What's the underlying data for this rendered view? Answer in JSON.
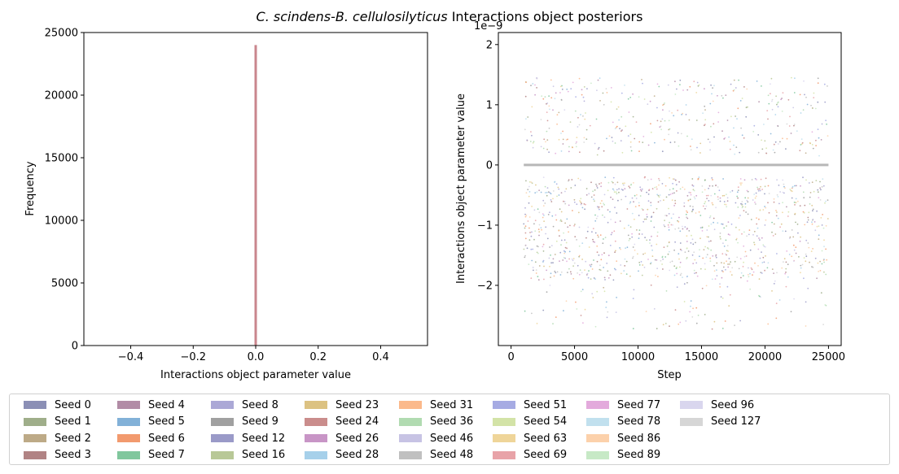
{
  "figure_title": {
    "italic": "C. scindens-B. cellulosilyticus",
    "rest": " Interactions object posteriors"
  },
  "chart_data": [
    {
      "type": "bar",
      "title": "",
      "xlabel": "Interactions object parameter value",
      "ylabel": "Frequency",
      "xlim": [
        -0.55,
        0.55
      ],
      "ylim": [
        0,
        25000
      ],
      "xticks": [
        "-0.4",
        "-0.2",
        "0.0",
        "0.2",
        "0.4"
      ],
      "yticks": [
        "0",
        "5000",
        "10000",
        "15000",
        "20000",
        "25000"
      ],
      "bars": [
        {
          "x": 0.0,
          "height": 24000,
          "color": "#c9868d"
        }
      ]
    },
    {
      "type": "scatter",
      "title": "",
      "xlabel": "Step",
      "ylabel": "Interactions object parameter value",
      "y_scale_label": "1e−9",
      "xlim": [
        -1000,
        26000
      ],
      "ylim": [
        -3.0,
        2.2
      ],
      "xticks": [
        "0",
        "5000",
        "10000",
        "15000",
        "20000",
        "25000"
      ],
      "yticks": [
        "−2",
        "−1",
        "0",
        "1",
        "2"
      ],
      "zero_line": {
        "x": [
          1000,
          25000
        ],
        "y": 0,
        "color": "#b8b8b8"
      },
      "point_count_estimate": 1500,
      "value_range": [
        -2.75,
        1.95
      ]
    }
  ],
  "legend": {
    "items": [
      {
        "label": "Seed 0",
        "color": "#8b8fb5"
      },
      {
        "label": "Seed 1",
        "color": "#9fae8a"
      },
      {
        "label": "Seed 2",
        "color": "#bdaa87"
      },
      {
        "label": "Seed 3",
        "color": "#b18384"
      },
      {
        "label": "Seed 4",
        "color": "#b28ca6"
      },
      {
        "label": "Seed 5",
        "color": "#82b1d8"
      },
      {
        "label": "Seed 6",
        "color": "#f29a6e"
      },
      {
        "label": "Seed 7",
        "color": "#80c79d"
      },
      {
        "label": "Seed 8",
        "color": "#aba8d6"
      },
      {
        "label": "Seed 9",
        "color": "#a0a0a0"
      },
      {
        "label": "Seed 12",
        "color": "#9a9ac8"
      },
      {
        "label": "Seed 16",
        "color": "#b8c897"
      },
      {
        "label": "Seed 23",
        "color": "#dcc282"
      },
      {
        "label": "Seed 24",
        "color": "#ca8d8c"
      },
      {
        "label": "Seed 26",
        "color": "#c895c6"
      },
      {
        "label": "Seed 28",
        "color": "#a6d0ea"
      },
      {
        "label": "Seed 31",
        "color": "#fbb98b"
      },
      {
        "label": "Seed 36",
        "color": "#b1dbb1"
      },
      {
        "label": "Seed 46",
        "color": "#c7c3e4"
      },
      {
        "label": "Seed 48",
        "color": "#c0c0c0"
      },
      {
        "label": "Seed 51",
        "color": "#a6abe3"
      },
      {
        "label": "Seed 54",
        "color": "#d3e3a7"
      },
      {
        "label": "Seed 63",
        "color": "#efd599"
      },
      {
        "label": "Seed 69",
        "color": "#e8a3a8"
      },
      {
        "label": "Seed 77",
        "color": "#e3aadc"
      },
      {
        "label": "Seed 78",
        "color": "#c1e0ee"
      },
      {
        "label": "Seed 86",
        "color": "#fcd1ab"
      },
      {
        "label": "Seed 89",
        "color": "#c7e9c6"
      },
      {
        "label": "Seed 96",
        "color": "#d9d6ee"
      },
      {
        "label": "Seed 127",
        "color": "#d6d6d6"
      }
    ]
  }
}
